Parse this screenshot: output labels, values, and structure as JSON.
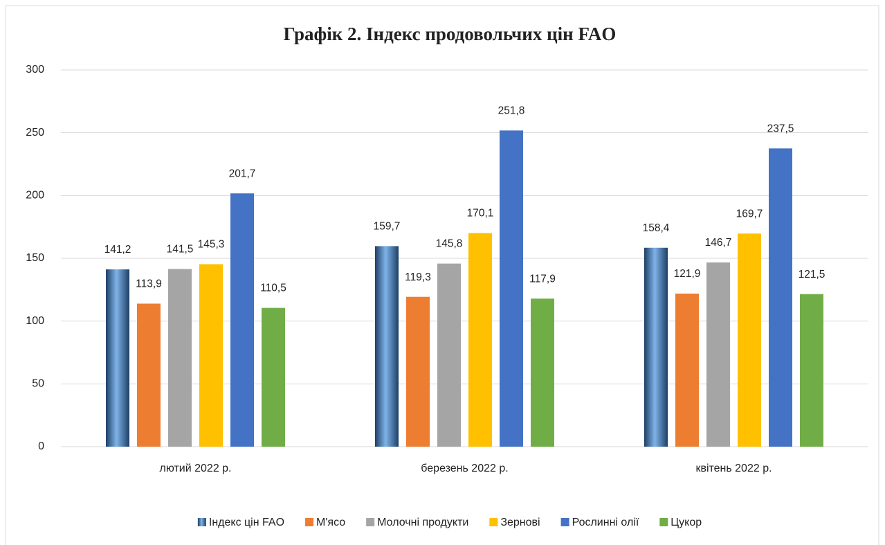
{
  "chart_data": {
    "type": "bar",
    "title": "Графік 2. Індекс продовольчих цін FAO",
    "categories": [
      "лютий 2022 р.",
      "березень 2022 р.",
      "квітень 2022 р."
    ],
    "series": [
      {
        "name": "Індекс цін FAO",
        "color": "#4a86c8",
        "values": [
          141.2,
          159.7,
          158.4
        ],
        "value_labels": [
          "141,2",
          "159,7",
          "158,4"
        ]
      },
      {
        "name": "М'ясо",
        "color": "#ed7d31",
        "values": [
          113.9,
          119.3,
          121.9
        ],
        "value_labels": [
          "113,9",
          "119,3",
          "121,9"
        ]
      },
      {
        "name": "Молочні продукти",
        "color": "#a5a5a5",
        "values": [
          141.5,
          145.8,
          146.7
        ],
        "value_labels": [
          "141,5",
          "145,8",
          "146,7"
        ]
      },
      {
        "name": "Зернові",
        "color": "#ffc000",
        "values": [
          145.3,
          170.1,
          169.7
        ],
        "value_labels": [
          "145,3",
          "170,1",
          "169,7"
        ]
      },
      {
        "name": "Рослинні олії",
        "color": "#4472c4",
        "values": [
          201.7,
          251.8,
          237.5
        ],
        "value_labels": [
          "201,7",
          "251,8",
          "237,5"
        ]
      },
      {
        "name": "Цукор",
        "color": "#70ad47",
        "values": [
          110.5,
          117.9,
          121.5
        ],
        "value_labels": [
          "110,5",
          "117,9",
          "121,5"
        ]
      }
    ],
    "ylim": [
      0,
      300
    ],
    "yticks": [
      0,
      50,
      100,
      150,
      200,
      250,
      300
    ],
    "grid": true,
    "legend": "bottom"
  }
}
